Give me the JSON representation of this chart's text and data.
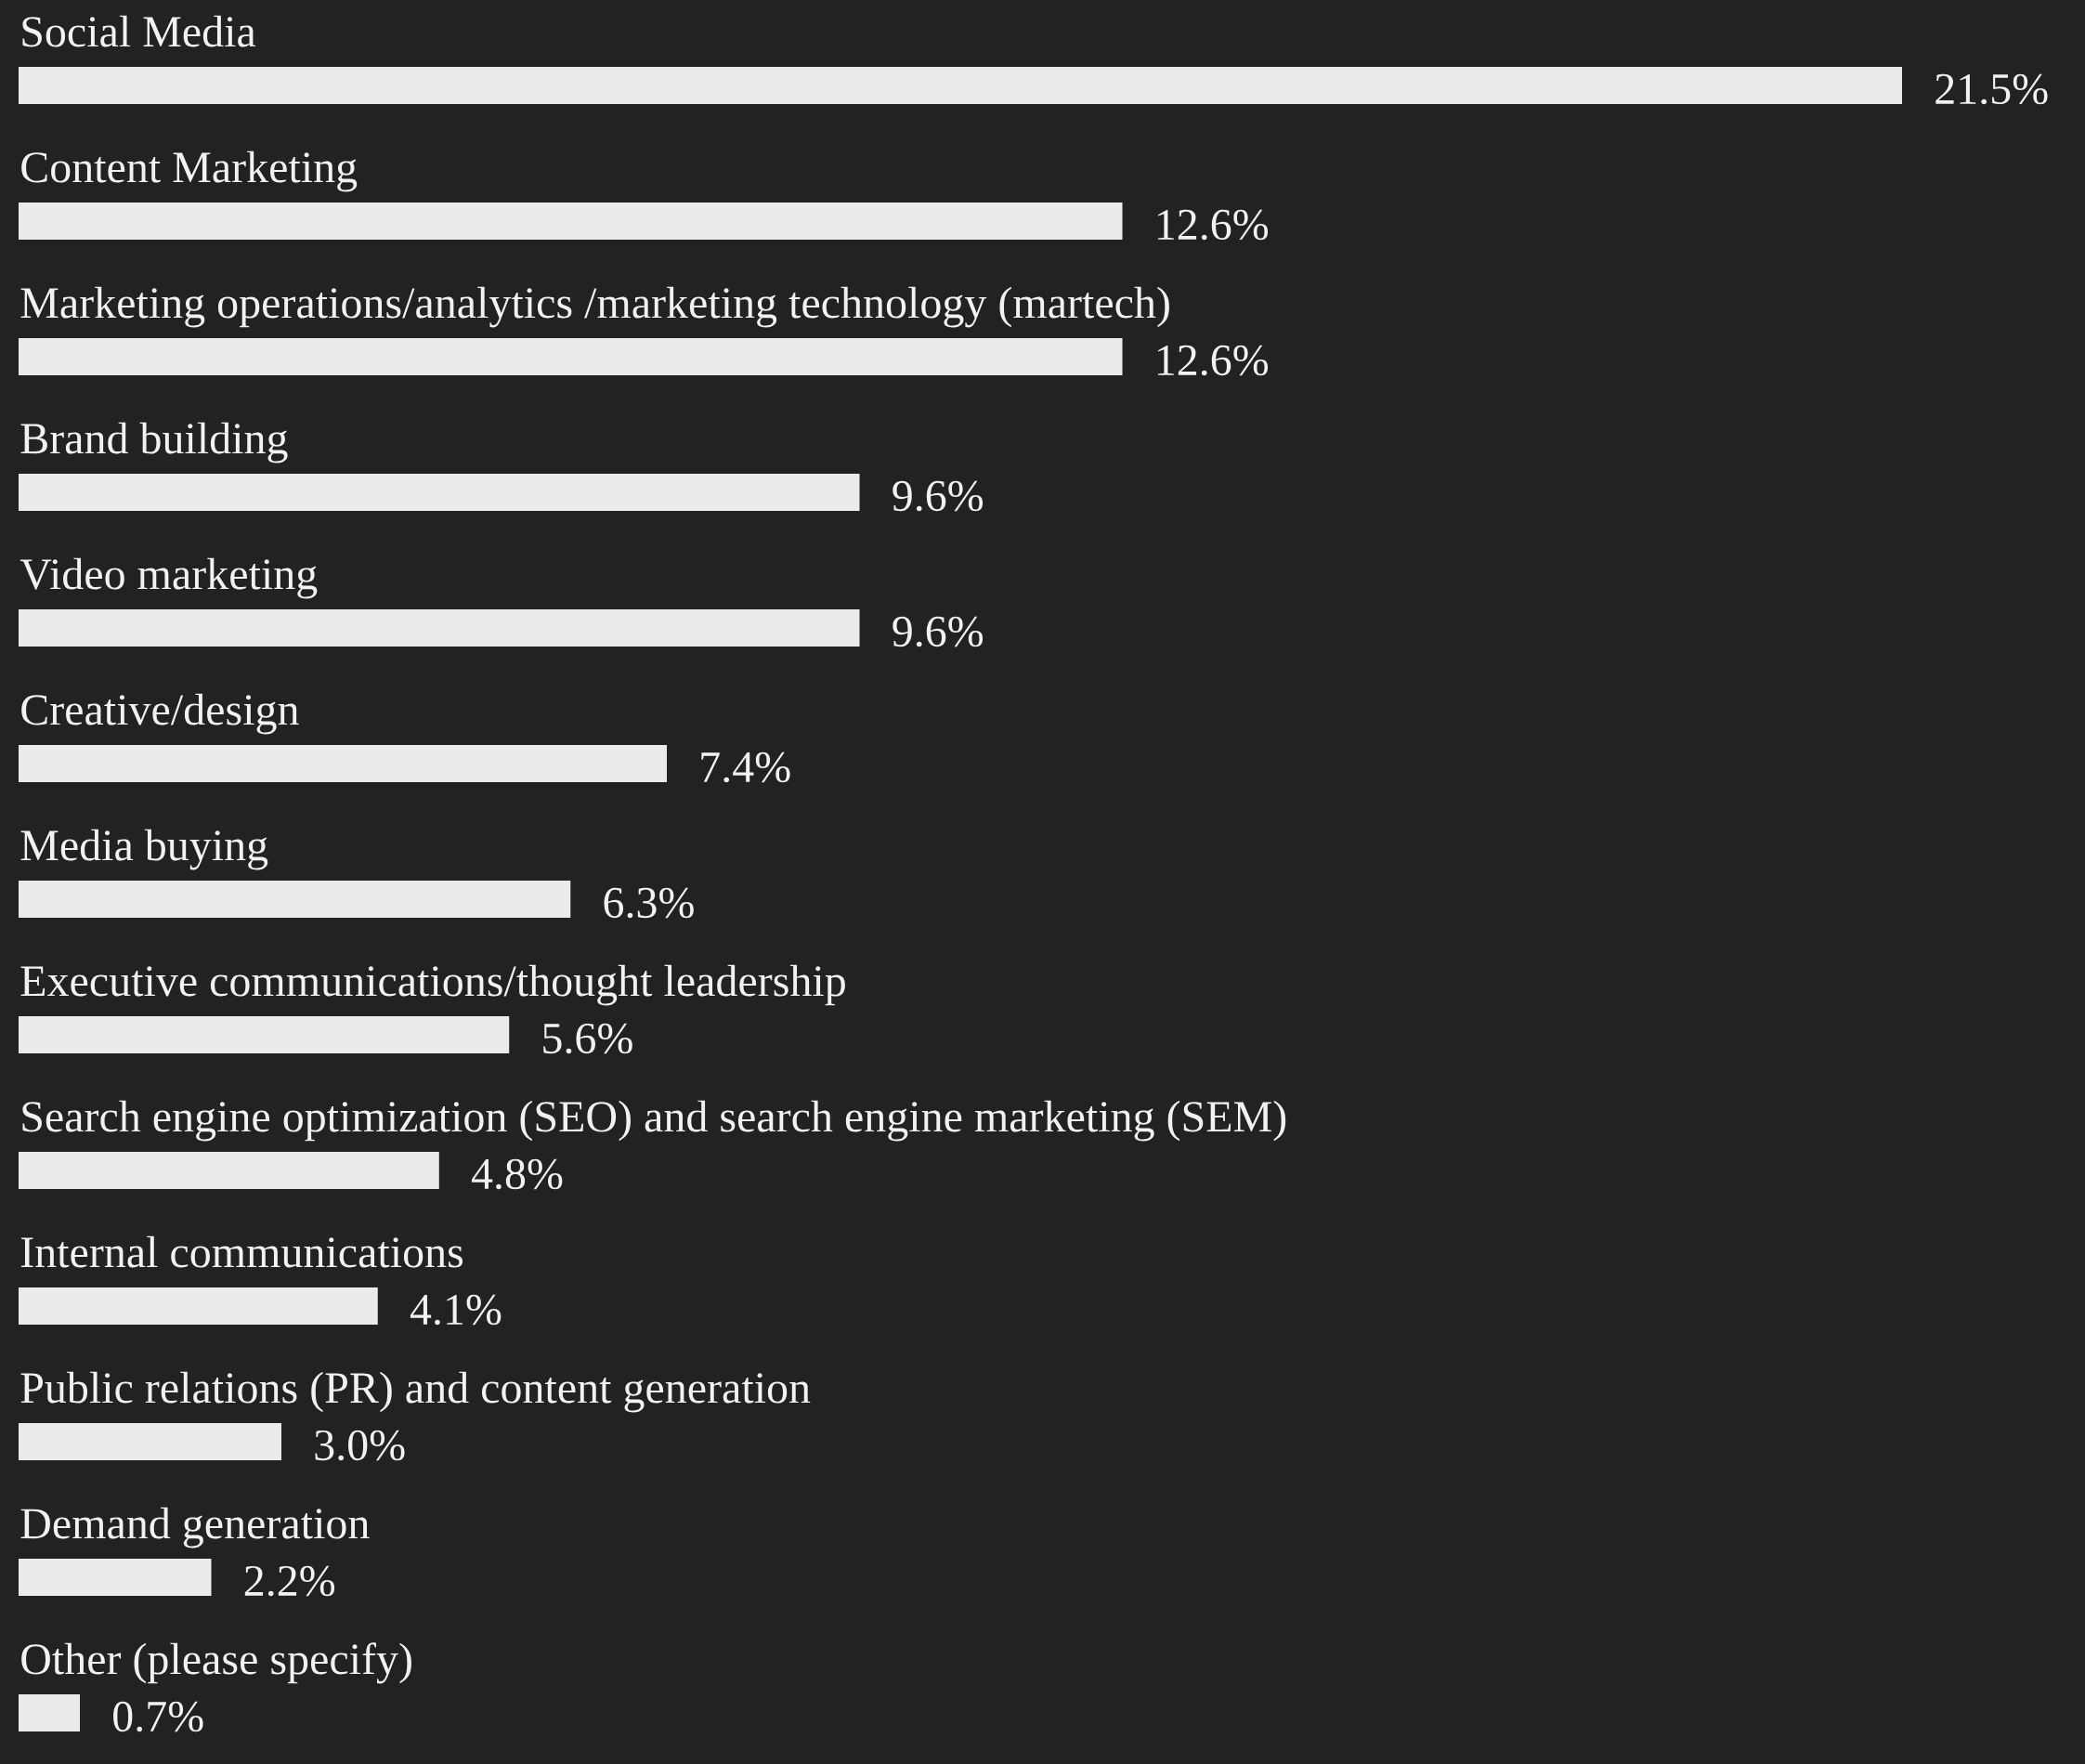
{
  "chart_data": {
    "type": "bar",
    "orientation": "horizontal",
    "color": "#ebebeb",
    "categories": [
      "Social Media",
      "Content Marketing",
      "Marketing operations/analytics /marketing technology (martech)",
      "Brand building",
      "Video marketing",
      "Creative/design",
      "Media buying",
      "Executive communications/thought leadership",
      "Search engine optimization (SEO) and search engine marketing (SEM)",
      "Internal communications",
      "Public relations (PR) and content generation",
      "Demand generation",
      "Other (please specify)"
    ],
    "values": [
      21.5,
      12.6,
      12.6,
      9.6,
      9.6,
      7.4,
      6.3,
      5.6,
      4.8,
      4.1,
      3.0,
      2.2,
      0.7
    ],
    "value_labels": [
      "21.5%",
      "12.6%",
      "12.6%",
      "9.6%",
      "9.6%",
      "7.4%",
      "6.3%",
      "5.6%",
      "4.8%",
      "4.1%",
      "3.0%",
      "2.2%",
      "0.7%"
    ]
  }
}
